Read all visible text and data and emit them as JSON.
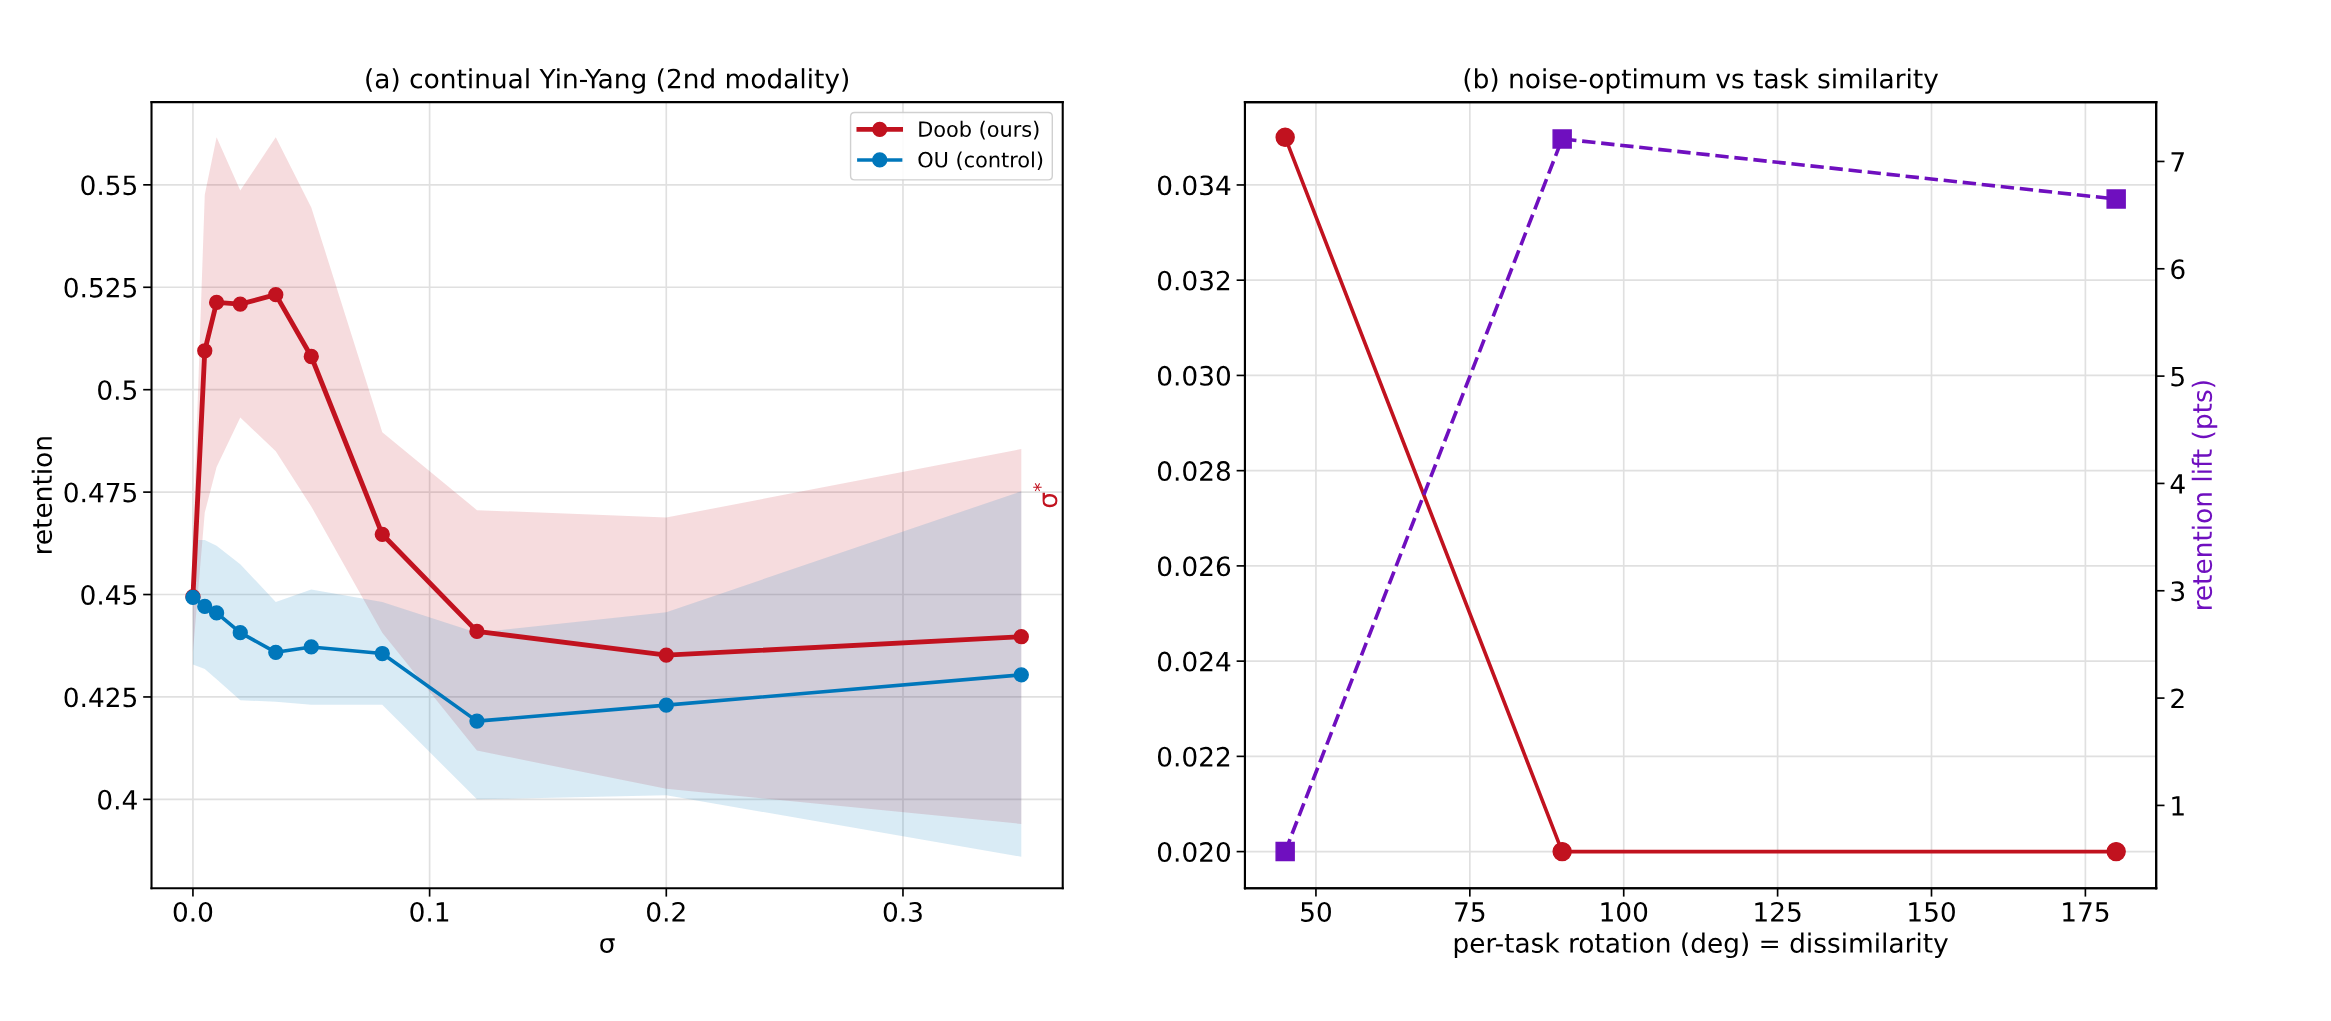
{
  "chart_data": [
    {
      "type": "line",
      "title": "(a) continual Yin-Yang (2nd modality)",
      "xlabel": "σ",
      "ylabel": "retention",
      "x": [
        0,
        0.005,
        0.01,
        0.02,
        0.035,
        0.05,
        0.08,
        0.12,
        0.2,
        0.35
      ],
      "series": [
        {
          "name": "Doob (ours)",
          "color": "#c1121f",
          "values": [
            0.4495,
            0.5095,
            0.5213,
            0.5209,
            0.5232,
            0.5081,
            0.4647,
            0.441,
            0.4352,
            0.4397
          ],
          "lower": [
            0.436,
            0.47,
            0.4811,
            0.4932,
            0.485,
            0.4715,
            0.4407,
            0.4119,
            0.4026,
            0.394
          ],
          "upper": [
            0.463,
            0.5476,
            0.5616,
            0.5486,
            0.5616,
            0.5445,
            0.4896,
            0.4706,
            0.4688,
            0.4855
          ]
        },
        {
          "name": "OU (control)",
          "color": "#0077bb",
          "values": [
            0.4493,
            0.4471,
            0.4455,
            0.4407,
            0.4359,
            0.4372,
            0.4356,
            0.4191,
            0.423,
            0.4304
          ],
          "lower": [
            0.4329,
            0.4318,
            0.4293,
            0.4242,
            0.4238,
            0.4231,
            0.4231,
            0.4,
            0.401,
            0.386
          ],
          "upper": [
            0.4633,
            0.4633,
            0.4619,
            0.4574,
            0.4482,
            0.4512,
            0.4482,
            0.4407,
            0.4457,
            0.4752
          ]
        }
      ],
      "xlim": [
        -0.0175,
        0.3675
      ],
      "xticks": [
        {
          "value": 0,
          "label": "0.0"
        },
        0.1,
        0.2,
        0.3
      ],
      "ylim": [
        0.3783,
        0.5702
      ],
      "yticks": [
        0.4,
        0.425,
        0.45,
        0.475,
        0.5,
        0.525,
        0.55
      ],
      "grid": true,
      "legend": "top right",
      "marker": "circle",
      "line_style": "solid"
    },
    {
      "type": "line",
      "title": "(b) noise-optimum vs task similarity",
      "xlabel": "per-task rotation (deg) = dissimilarity",
      "ylabel": "σ$^{*}$",
      "y2label": "retention lift (pts)",
      "x": [
        45,
        90,
        180
      ],
      "series": [
        {
          "color": "#c1121f",
          "values": [
            0.035,
            0.02,
            0.02
          ],
          "marker": "circle",
          "line_style": "solid"
        },
        {
          "color": "#6f0fbf",
          "values": [
            0.57,
            7.21,
            6.65
          ],
          "axis": "y2",
          "marker": "square",
          "line_style": "dashed"
        }
      ],
      "xlim": [
        38.47,
        186.5
      ],
      "xticks": [
        50,
        75,
        100,
        125,
        150,
        175
      ],
      "ylim": [
        0.01923,
        0.03574
      ],
      "yticks": [
        {
          "value": 0.02,
          "label": "0.020"
        },
        0.022,
        0.024,
        0.026,
        0.028,
        {
          "value": 0.03,
          "label": "0.030"
        },
        0.032,
        0.034
      ],
      "y2lim": [
        0.228,
        7.553
      ],
      "y2ticks": [
        1,
        2,
        3,
        4,
        5,
        6,
        7
      ],
      "grid": true
    }
  ]
}
